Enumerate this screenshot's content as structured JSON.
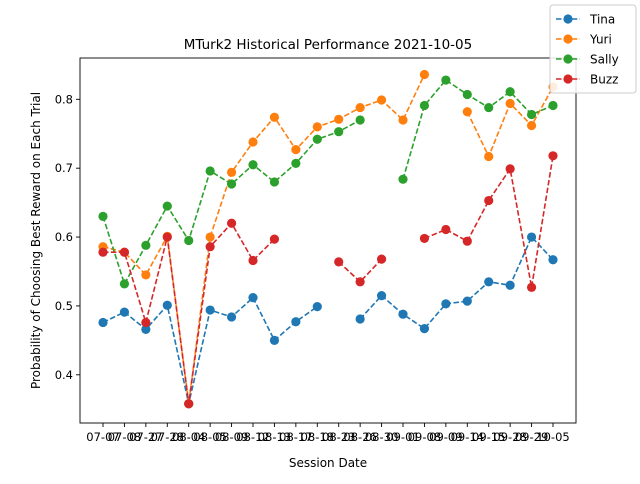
{
  "chart_data": {
    "type": "line",
    "title": "MTurk2 Historical Performance 2021-10-05",
    "xlabel": "Session Date",
    "ylabel": "Probability of Choosing Best Reward on Each Trial",
    "ylim": [
      0.33,
      0.86
    ],
    "yticks": [
      "0.4",
      "0.5",
      "0.6",
      "0.7",
      "0.8"
    ],
    "ytick_values": [
      0.4,
      0.5,
      0.6,
      0.7,
      0.8
    ],
    "categories": [
      "07-07",
      "07-08",
      "07-27",
      "07-28",
      "08-04",
      "08-05",
      "08-09",
      "08-12",
      "08-13",
      "08-17",
      "08-18",
      "08-23",
      "08-26",
      "08-30",
      "09-01",
      "09-08",
      "09-09",
      "09-14",
      "09-15",
      "09-28",
      "09-29",
      "10-05"
    ],
    "grid": false,
    "legend_position": "top-right",
    "series": [
      {
        "name": "Tina",
        "color": "#1f77b4",
        "values": [
          0.476,
          0.491,
          0.466,
          0.501,
          0.358,
          0.494,
          0.484,
          0.512,
          0.45,
          0.477,
          0.499,
          null,
          0.481,
          0.515,
          0.488,
          0.467,
          0.503,
          0.507,
          0.535,
          0.53,
          0.6,
          0.567
        ]
      },
      {
        "name": "Yuri",
        "color": "#ff7f0e",
        "values": [
          0.586,
          0.578,
          0.545,
          0.601,
          0.358,
          0.6,
          0.694,
          0.738,
          0.774,
          0.727,
          0.76,
          0.771,
          0.788,
          0.799,
          0.77,
          0.836,
          null,
          0.782,
          0.717,
          0.794,
          0.762,
          0.818
        ]
      },
      {
        "name": "Sally",
        "color": "#2ca02c",
        "values": [
          0.63,
          0.532,
          0.588,
          0.645,
          0.595,
          0.696,
          0.677,
          0.705,
          0.68,
          0.707,
          0.742,
          0.753,
          0.77,
          null,
          0.684,
          0.791,
          0.828,
          0.807,
          0.788,
          0.811,
          0.778,
          0.791
        ]
      },
      {
        "name": "Buzz",
        "color": "#d62728",
        "values": [
          0.578,
          0.578,
          0.476,
          0.6,
          0.358,
          0.586,
          0.62,
          0.566,
          0.597,
          null,
          null,
          0.564,
          0.535,
          0.568,
          null,
          0.598,
          0.611,
          0.594,
          0.653,
          0.699,
          0.527,
          0.718
        ]
      }
    ]
  }
}
